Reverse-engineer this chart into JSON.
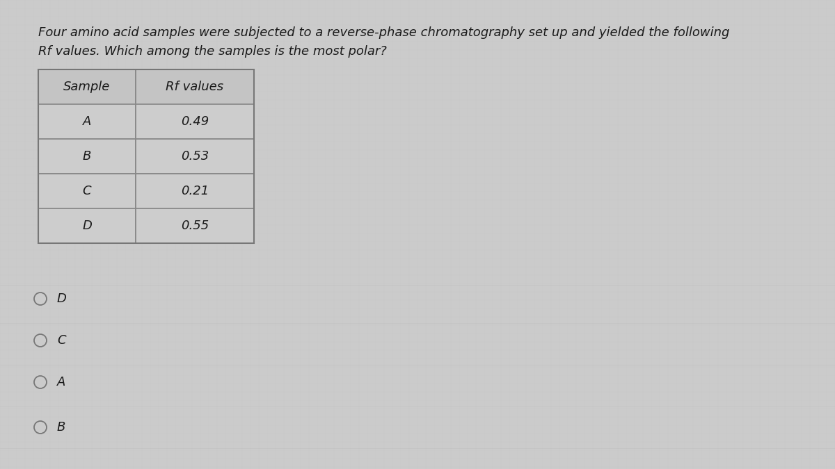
{
  "question_line1": "Four amino acid samples were subjected to a reverse-phase chromatography set up and yielded the following",
  "question_line2": "Rf values. Which among the samples is the most polar?",
  "table_headers": [
    "Sample",
    "Rf values"
  ],
  "table_rows": [
    [
      "A",
      "0.49"
    ],
    [
      "B",
      "0.53"
    ],
    [
      "C",
      "0.21"
    ],
    [
      "D",
      "0.55"
    ]
  ],
  "options": [
    "D",
    "C",
    "A",
    "B"
  ],
  "bg_color": "#cbcbcb",
  "table_outer_bg": "#c2c2c2",
  "table_header_bg": "#c0c0c0",
  "table_row_bg": "#cacaca",
  "table_line_color": "#888888",
  "question_font_size": 13,
  "table_font_size": 13,
  "option_font_size": 13,
  "text_color": "#1a1a1a",
  "circle_edge_color": "#777777"
}
